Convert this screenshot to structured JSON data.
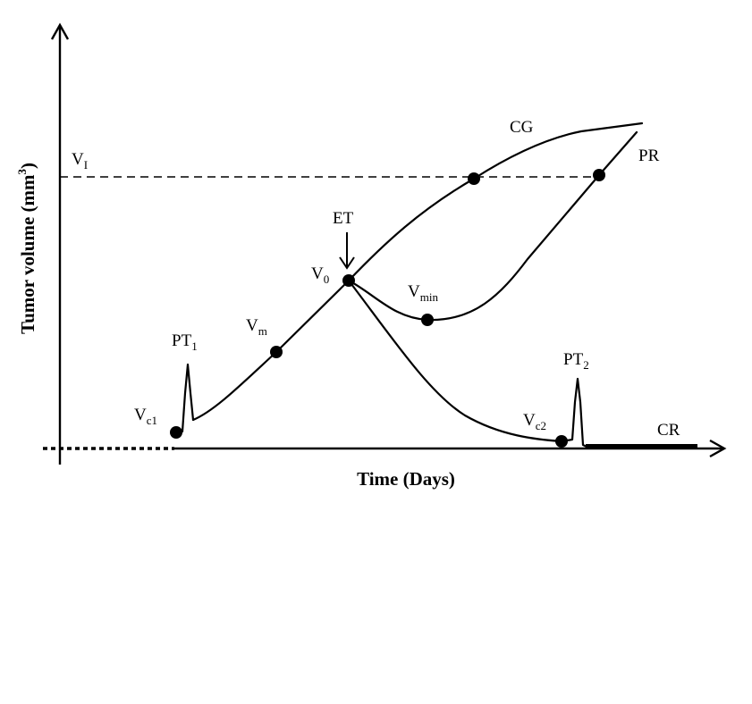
{
  "xlabel": "Time (Days)",
  "ylabel": "Tumor volume (mm",
  "ylabel_sup": "3",
  "ylabel_close": ")",
  "labels": {
    "vi": {
      "base": "V",
      "sub": "I"
    },
    "v0": {
      "base": "V",
      "sub": "0"
    },
    "vm": {
      "base": "V",
      "sub": "m"
    },
    "vmin": {
      "base": "V",
      "sub": "min"
    },
    "vc1": {
      "base": "V",
      "sub": "c1"
    },
    "vc2": {
      "base": "V",
      "sub": "c2"
    },
    "pt1": {
      "base": "PT",
      "sub": "1"
    },
    "pt2": {
      "base": "PT",
      "sub": "2"
    },
    "et": "ET",
    "cg": "CG",
    "pr": "PR",
    "cr": "CR"
  }
}
